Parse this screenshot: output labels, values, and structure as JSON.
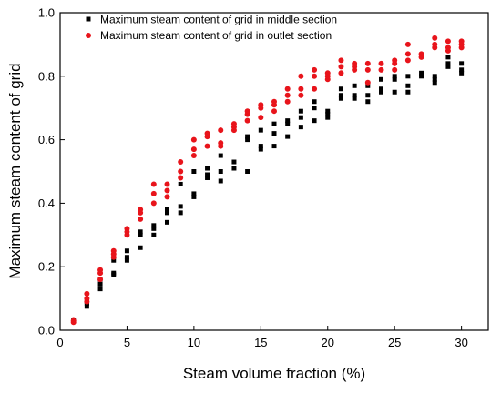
{
  "chart_data": {
    "type": "scatter",
    "title": "",
    "xlabel": "Steam volume fraction (%)",
    "ylabel": "Maximum steam content of grid",
    "xlim": [
      0,
      32
    ],
    "ylim": [
      0.0,
      1.0
    ],
    "x_ticks": [
      "0",
      "5",
      "10",
      "15",
      "20",
      "25",
      "30"
    ],
    "y_ticks": [
      "0.0",
      "0.2",
      "0.4",
      "0.6",
      "0.8",
      "1.0"
    ],
    "grid": false,
    "legend_position": "top-center",
    "series": [
      {
        "name": "Maximum steam content of grid in middle section",
        "marker": "square",
        "color": "#000000",
        "points": [
          [
            1,
            0.03
          ],
          [
            2,
            0.075
          ],
          [
            2,
            0.085
          ],
          [
            2,
            0.09
          ],
          [
            3,
            0.13
          ],
          [
            3,
            0.145
          ],
          [
            3,
            0.16
          ],
          [
            4,
            0.175
          ],
          [
            4,
            0.18
          ],
          [
            4,
            0.22
          ],
          [
            5,
            0.22
          ],
          [
            5,
            0.23
          ],
          [
            5,
            0.25
          ],
          [
            6,
            0.26
          ],
          [
            6,
            0.3
          ],
          [
            6,
            0.31
          ],
          [
            7,
            0.3
          ],
          [
            7,
            0.32
          ],
          [
            7,
            0.33
          ],
          [
            8,
            0.34
          ],
          [
            8,
            0.37
          ],
          [
            8,
            0.38
          ],
          [
            9,
            0.37
          ],
          [
            9,
            0.39
          ],
          [
            9,
            0.46
          ],
          [
            10,
            0.42
          ],
          [
            10,
            0.43
          ],
          [
            10,
            0.5
          ],
          [
            11,
            0.48
          ],
          [
            11,
            0.49
          ],
          [
            11,
            0.51
          ],
          [
            12,
            0.47
          ],
          [
            12,
            0.5
          ],
          [
            12,
            0.55
          ],
          [
            13,
            0.51
          ],
          [
            13,
            0.53
          ],
          [
            14,
            0.5
          ],
          [
            14,
            0.6
          ],
          [
            14,
            0.61
          ],
          [
            15,
            0.57
          ],
          [
            15,
            0.58
          ],
          [
            15,
            0.63
          ],
          [
            16,
            0.58
          ],
          [
            16,
            0.62
          ],
          [
            16,
            0.65
          ],
          [
            17,
            0.61
          ],
          [
            17,
            0.65
          ],
          [
            17,
            0.66
          ],
          [
            18,
            0.64
          ],
          [
            18,
            0.67
          ],
          [
            18,
            0.69
          ],
          [
            19,
            0.66
          ],
          [
            19,
            0.7
          ],
          [
            19,
            0.72
          ],
          [
            20,
            0.67
          ],
          [
            20,
            0.68
          ],
          [
            20,
            0.69
          ],
          [
            21,
            0.73
          ],
          [
            21,
            0.74
          ],
          [
            21,
            0.76
          ],
          [
            22,
            0.73
          ],
          [
            22,
            0.74
          ],
          [
            22,
            0.77
          ],
          [
            23,
            0.72
          ],
          [
            23,
            0.74
          ],
          [
            23,
            0.77
          ],
          [
            24,
            0.75
          ],
          [
            24,
            0.76
          ],
          [
            24,
            0.79
          ],
          [
            25,
            0.75
          ],
          [
            25,
            0.79
          ],
          [
            25,
            0.8
          ],
          [
            26,
            0.75
          ],
          [
            26,
            0.77
          ],
          [
            26,
            0.8
          ],
          [
            27,
            0.8
          ],
          [
            27,
            0.81
          ],
          [
            28,
            0.78
          ],
          [
            28,
            0.79
          ],
          [
            28,
            0.8
          ],
          [
            29,
            0.83
          ],
          [
            29,
            0.84
          ],
          [
            29,
            0.86
          ],
          [
            30,
            0.81
          ],
          [
            30,
            0.82
          ],
          [
            30,
            0.84
          ]
        ]
      },
      {
        "name": "Maximum steam content of grid in outlet section",
        "marker": "circle",
        "color": "#e8141b",
        "points": [
          [
            1,
            0.025
          ],
          [
            1,
            0.03
          ],
          [
            2,
            0.09
          ],
          [
            2,
            0.1
          ],
          [
            2,
            0.115
          ],
          [
            3,
            0.16
          ],
          [
            3,
            0.18
          ],
          [
            3,
            0.19
          ],
          [
            4,
            0.23
          ],
          [
            4,
            0.24
          ],
          [
            4,
            0.25
          ],
          [
            5,
            0.3
          ],
          [
            5,
            0.31
          ],
          [
            5,
            0.32
          ],
          [
            6,
            0.35
          ],
          [
            6,
            0.37
          ],
          [
            6,
            0.38
          ],
          [
            7,
            0.4
          ],
          [
            7,
            0.43
          ],
          [
            7,
            0.46
          ],
          [
            8,
            0.42
          ],
          [
            8,
            0.44
          ],
          [
            8,
            0.46
          ],
          [
            9,
            0.48
          ],
          [
            9,
            0.5
          ],
          [
            9,
            0.53
          ],
          [
            10,
            0.55
          ],
          [
            10,
            0.57
          ],
          [
            10,
            0.6
          ],
          [
            11,
            0.58
          ],
          [
            11,
            0.61
          ],
          [
            11,
            0.62
          ],
          [
            12,
            0.58
          ],
          [
            12,
            0.59
          ],
          [
            12,
            0.63
          ],
          [
            13,
            0.63
          ],
          [
            13,
            0.64
          ],
          [
            13,
            0.65
          ],
          [
            14,
            0.66
          ],
          [
            14,
            0.68
          ],
          [
            14,
            0.69
          ],
          [
            15,
            0.67
          ],
          [
            15,
            0.7
          ],
          [
            15,
            0.71
          ],
          [
            16,
            0.69
          ],
          [
            16,
            0.71
          ],
          [
            16,
            0.72
          ],
          [
            17,
            0.72
          ],
          [
            17,
            0.74
          ],
          [
            17,
            0.76
          ],
          [
            18,
            0.74
          ],
          [
            18,
            0.76
          ],
          [
            18,
            0.8
          ],
          [
            19,
            0.76
          ],
          [
            19,
            0.8
          ],
          [
            19,
            0.82
          ],
          [
            20,
            0.79
          ],
          [
            20,
            0.8
          ],
          [
            20,
            0.81
          ],
          [
            21,
            0.81
          ],
          [
            21,
            0.83
          ],
          [
            21,
            0.85
          ],
          [
            22,
            0.82
          ],
          [
            22,
            0.83
          ],
          [
            22,
            0.84
          ],
          [
            23,
            0.78
          ],
          [
            23,
            0.82
          ],
          [
            23,
            0.84
          ],
          [
            24,
            0.82
          ],
          [
            24,
            0.84
          ],
          [
            25,
            0.82
          ],
          [
            25,
            0.84
          ],
          [
            25,
            0.85
          ],
          [
            26,
            0.85
          ],
          [
            26,
            0.87
          ],
          [
            26,
            0.9
          ],
          [
            27,
            0.86
          ],
          [
            27,
            0.87
          ],
          [
            28,
            0.89
          ],
          [
            28,
            0.9
          ],
          [
            28,
            0.92
          ],
          [
            29,
            0.88
          ],
          [
            29,
            0.89
          ],
          [
            29,
            0.91
          ],
          [
            30,
            0.89
          ],
          [
            30,
            0.9
          ],
          [
            30,
            0.91
          ]
        ]
      }
    ]
  }
}
